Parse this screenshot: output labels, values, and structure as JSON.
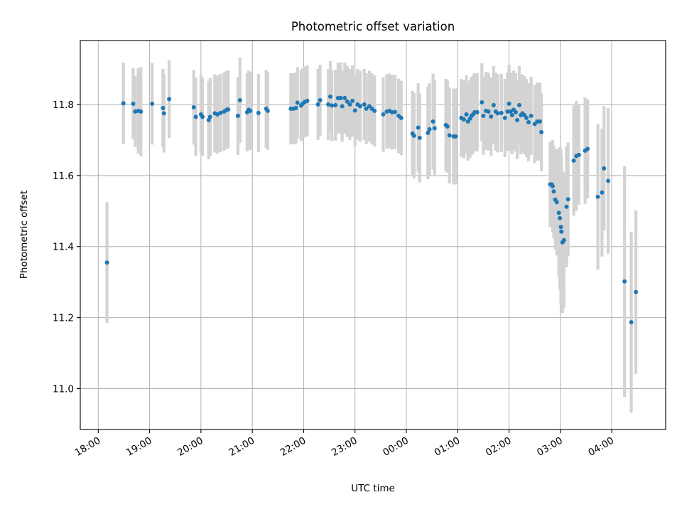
{
  "chart_data": {
    "type": "scatter",
    "title": "Photometric offset variation",
    "xlabel": "UTC time",
    "ylabel": "Photometric offset",
    "xlim_hours": [
      17.65,
      29.05
    ],
    "ylim": [
      10.885,
      11.98
    ],
    "grid": true,
    "x_ticks": [
      {
        "h": 18,
        "label": "18:00"
      },
      {
        "h": 19,
        "label": "19:00"
      },
      {
        "h": 20,
        "label": "20:00"
      },
      {
        "h": 21,
        "label": "21:00"
      },
      {
        "h": 22,
        "label": "22:00"
      },
      {
        "h": 23,
        "label": "23:00"
      },
      {
        "h": 24,
        "label": "00:00"
      },
      {
        "h": 25,
        "label": "01:00"
      },
      {
        "h": 26,
        "label": "02:00"
      },
      {
        "h": 27,
        "label": "03:00"
      },
      {
        "h": 28,
        "label": "04:00"
      }
    ],
    "y_ticks": [
      {
        "v": 11.0,
        "label": "11.0"
      },
      {
        "v": 11.2,
        "label": "11.2"
      },
      {
        "v": 11.4,
        "label": "11.4"
      },
      {
        "v": 11.6,
        "label": "11.6"
      },
      {
        "v": 11.8,
        "label": "11.8"
      }
    ],
    "colors": {
      "points": "#1f77b4",
      "errorbars": "#d3d3d3",
      "grid": "#b0b0b0"
    },
    "series": [
      {
        "points": [
          [
            18.17,
            11.355,
            0.17
          ],
          [
            18.49,
            11.803,
            0.115
          ],
          [
            18.68,
            11.802,
            0.1
          ],
          [
            18.72,
            11.78,
            0.1
          ],
          [
            18.78,
            11.782,
            0.12
          ],
          [
            18.83,
            11.78,
            0.125
          ],
          [
            19.05,
            11.802,
            0.115
          ],
          [
            19.26,
            11.79,
            0.11
          ],
          [
            19.28,
            11.775,
            0.11
          ],
          [
            19.38,
            11.815,
            0.11
          ],
          [
            19.86,
            11.792,
            0.105
          ],
          [
            19.9,
            11.765,
            0.11
          ],
          [
            20.0,
            11.772,
            0.11
          ],
          [
            20.03,
            11.765,
            0.11
          ],
          [
            20.15,
            11.756,
            0.11
          ],
          [
            20.18,
            11.765,
            0.11
          ],
          [
            20.27,
            11.775,
            0.11
          ],
          [
            20.32,
            11.772,
            0.11
          ],
          [
            20.38,
            11.776,
            0.11
          ],
          [
            20.45,
            11.78,
            0.11
          ],
          [
            20.5,
            11.785,
            0.11
          ],
          [
            20.53,
            11.786,
            0.11
          ],
          [
            20.72,
            11.768,
            0.11
          ],
          [
            20.76,
            11.812,
            0.12
          ],
          [
            20.9,
            11.778,
            0.11
          ],
          [
            20.93,
            11.785,
            0.11
          ],
          [
            20.96,
            11.782,
            0.11
          ],
          [
            21.12,
            11.776,
            0.11
          ],
          [
            21.27,
            11.788,
            0.11
          ],
          [
            21.3,
            11.782,
            0.11
          ],
          [
            21.75,
            11.788,
            0.1
          ],
          [
            21.8,
            11.788,
            0.1
          ],
          [
            21.85,
            11.79,
            0.1
          ],
          [
            21.88,
            11.805,
            0.1
          ],
          [
            21.95,
            11.797,
            0.1
          ],
          [
            21.98,
            11.802,
            0.1
          ],
          [
            22.02,
            11.807,
            0.1
          ],
          [
            22.07,
            11.81,
            0.1
          ],
          [
            22.28,
            11.8,
            0.1
          ],
          [
            22.32,
            11.812,
            0.1
          ],
          [
            22.48,
            11.8,
            0.1
          ],
          [
            22.52,
            11.822,
            0.1
          ],
          [
            22.55,
            11.797,
            0.1
          ],
          [
            22.62,
            11.798,
            0.1
          ],
          [
            22.67,
            11.818,
            0.1
          ],
          [
            22.72,
            11.818,
            0.1
          ],
          [
            22.75,
            11.795,
            0.1
          ],
          [
            22.8,
            11.818,
            0.1
          ],
          [
            22.85,
            11.808,
            0.1
          ],
          [
            22.9,
            11.8,
            0.1
          ],
          [
            22.95,
            11.81,
            0.1
          ],
          [
            23.0,
            11.783,
            0.1
          ],
          [
            23.05,
            11.8,
            0.1
          ],
          [
            23.1,
            11.795,
            0.1
          ],
          [
            23.18,
            11.8,
            0.1
          ],
          [
            23.22,
            11.788,
            0.1
          ],
          [
            23.28,
            11.795,
            0.1
          ],
          [
            23.33,
            11.788,
            0.1
          ],
          [
            23.38,
            11.782,
            0.1
          ],
          [
            23.55,
            11.772,
            0.105
          ],
          [
            23.62,
            11.78,
            0.105
          ],
          [
            23.67,
            11.782,
            0.105
          ],
          [
            23.72,
            11.778,
            0.105
          ],
          [
            23.78,
            11.779,
            0.105
          ],
          [
            23.85,
            11.768,
            0.105
          ],
          [
            23.9,
            11.762,
            0.105
          ],
          [
            24.12,
            11.718,
            0.12
          ],
          [
            24.15,
            11.712,
            0.12
          ],
          [
            24.23,
            11.735,
            0.125
          ],
          [
            24.26,
            11.706,
            0.125
          ],
          [
            24.42,
            11.72,
            0.13
          ],
          [
            24.45,
            11.73,
            0.13
          ],
          [
            24.52,
            11.752,
            0.135
          ],
          [
            24.55,
            11.733,
            0.135
          ],
          [
            24.77,
            11.742,
            0.13
          ],
          [
            24.8,
            11.738,
            0.13
          ],
          [
            24.84,
            11.713,
            0.135
          ],
          [
            24.92,
            11.71,
            0.135
          ],
          [
            24.96,
            11.71,
            0.135
          ],
          [
            25.07,
            11.762,
            0.11
          ],
          [
            25.12,
            11.758,
            0.11
          ],
          [
            25.17,
            11.772,
            0.11
          ],
          [
            25.2,
            11.752,
            0.11
          ],
          [
            25.24,
            11.76,
            0.11
          ],
          [
            25.27,
            11.768,
            0.11
          ],
          [
            25.3,
            11.772,
            0.11
          ],
          [
            25.33,
            11.778,
            0.11
          ],
          [
            25.38,
            11.778,
            0.11
          ],
          [
            25.47,
            11.806,
            0.11
          ],
          [
            25.5,
            11.768,
            0.11
          ],
          [
            25.55,
            11.782,
            0.11
          ],
          [
            25.6,
            11.78,
            0.11
          ],
          [
            25.65,
            11.766,
            0.11
          ],
          [
            25.7,
            11.798,
            0.11
          ],
          [
            25.74,
            11.78,
            0.11
          ],
          [
            25.78,
            11.775,
            0.11
          ],
          [
            25.85,
            11.776,
            0.11
          ],
          [
            25.92,
            11.762,
            0.11
          ],
          [
            25.97,
            11.78,
            0.11
          ],
          [
            26.0,
            11.802,
            0.11
          ],
          [
            26.03,
            11.78,
            0.11
          ],
          [
            26.06,
            11.77,
            0.11
          ],
          [
            26.09,
            11.785,
            0.11
          ],
          [
            26.13,
            11.778,
            0.11
          ],
          [
            26.16,
            11.756,
            0.11
          ],
          [
            26.2,
            11.798,
            0.11
          ],
          [
            26.23,
            11.77,
            0.11
          ],
          [
            26.26,
            11.775,
            0.11
          ],
          [
            26.3,
            11.77,
            0.11
          ],
          [
            26.34,
            11.762,
            0.11
          ],
          [
            26.38,
            11.75,
            0.11
          ],
          [
            26.43,
            11.768,
            0.11
          ],
          [
            26.5,
            11.745,
            0.11
          ],
          [
            26.55,
            11.752,
            0.11
          ],
          [
            26.6,
            11.752,
            0.11
          ],
          [
            26.63,
            11.722,
            0.11
          ],
          [
            26.8,
            11.575,
            0.12
          ],
          [
            26.83,
            11.575,
            0.12
          ],
          [
            26.85,
            11.57,
            0.13
          ],
          [
            26.87,
            11.555,
            0.13
          ],
          [
            26.9,
            11.532,
            0.14
          ],
          [
            26.93,
            11.525,
            0.15
          ],
          [
            26.97,
            11.495,
            0.18
          ],
          [
            26.99,
            11.48,
            0.2
          ],
          [
            27.01,
            11.455,
            0.22
          ],
          [
            27.02,
            11.442,
            0.21
          ],
          [
            27.04,
            11.412,
            0.2
          ],
          [
            27.07,
            11.418,
            0.19
          ],
          [
            27.12,
            11.512,
            0.17
          ],
          [
            27.15,
            11.533,
            0.16
          ],
          [
            27.26,
            11.642,
            0.155
          ],
          [
            27.31,
            11.655,
            0.155
          ],
          [
            27.36,
            11.658,
            0.14
          ],
          [
            27.48,
            11.67,
            0.15
          ],
          [
            27.53,
            11.675,
            0.14
          ],
          [
            27.73,
            11.54,
            0.205
          ],
          [
            27.81,
            11.552,
            0.18
          ],
          [
            27.85,
            11.62,
            0.175
          ],
          [
            27.93,
            11.585,
            0.205
          ],
          [
            28.25,
            11.302,
            0.325
          ],
          [
            28.38,
            11.187,
            0.255
          ],
          [
            28.47,
            11.272,
            0.23
          ]
        ]
      }
    ]
  }
}
